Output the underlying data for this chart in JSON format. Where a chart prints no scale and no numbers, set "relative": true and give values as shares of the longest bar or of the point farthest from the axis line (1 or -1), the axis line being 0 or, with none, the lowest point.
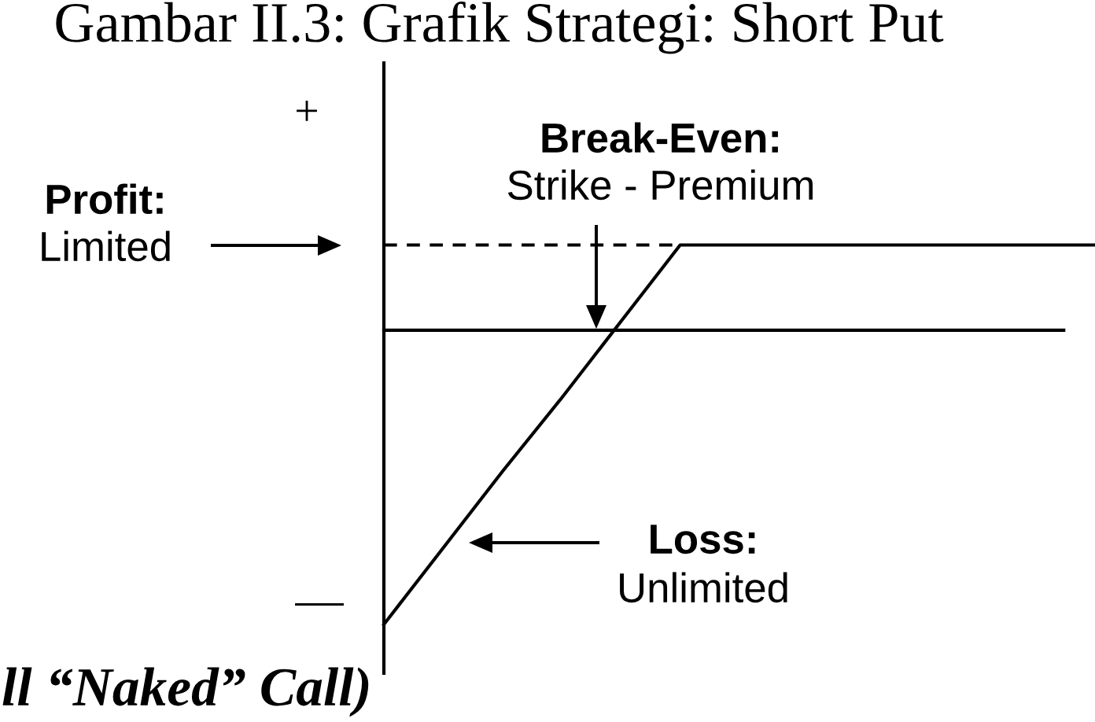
{
  "chart_data": {
    "type": "line",
    "relative": true,
    "title": "Gambar II.3: Grafik Strategi: Short Put",
    "line_style": "solid",
    "categories": [
      null,
      null,
      null,
      null,
      null,
      null,
      null,
      null,
      null,
      null,
      null,
      null,
      null
    ],
    "series": [
      {
        "color": "#000000",
        "values": [
          -1,
          -0.74,
          -0.48,
          -0.23,
          0.03,
          0.29,
          0.29,
          0.29,
          0.29,
          0.29,
          0.29,
          0.29,
          0.29
        ]
      },
      {
        "color": "#000000",
        "line_style": "dashed",
        "values": [
          0.29,
          0.29,
          0.29,
          0.29,
          0.29,
          0.29,
          null,
          null,
          null,
          null,
          null,
          null,
          null
        ]
      }
    ],
    "annotations": [
      "+",
      "—",
      "Profit:\nLimited",
      "Break-Even:\nStrike - Premium",
      "Loss:\nUnlimited",
      "ll “Naked” Call)"
    ]
  }
}
